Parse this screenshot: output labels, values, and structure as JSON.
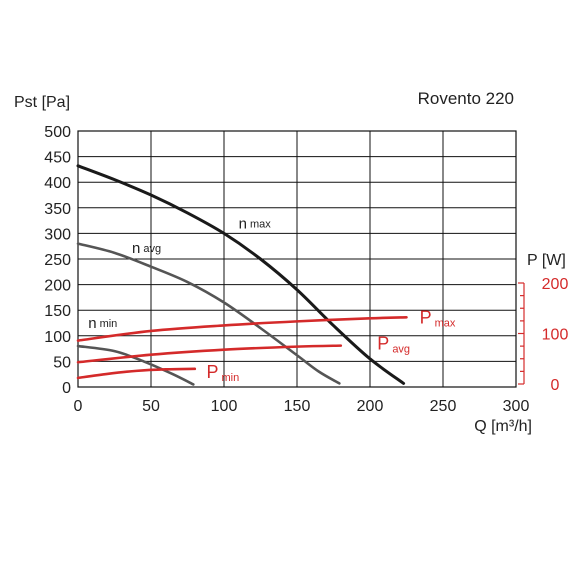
{
  "chart_data": {
    "type": "line",
    "title": "Rovento 220",
    "xlabel": "Q [m³/h]",
    "ylabel": "Pst [Pa]",
    "y2label": "P [W]",
    "xlim": [
      0,
      300
    ],
    "ylim": [
      0,
      500
    ],
    "y2lim": [
      0,
      200
    ],
    "x_ticks": [
      "0",
      "50",
      "100",
      "150",
      "200",
      "250",
      "300"
    ],
    "y_ticks": [
      "0",
      "50",
      "100",
      "150",
      "200",
      "250",
      "300",
      "350",
      "400",
      "450",
      "500"
    ],
    "y2_ticks": [
      "0",
      "100",
      "200"
    ],
    "grid": true,
    "colors": {
      "max": "#1a1a1a",
      "avg": "#555555",
      "min": "#555555",
      "power": "#d42a2a",
      "grid": "#111111"
    },
    "series": [
      {
        "key": "n_max",
        "label_main": "n",
        "label_sub": "max",
        "axis": "left",
        "color_key": "max",
        "label_at": [
          110,
          310
        ],
        "points": [
          [
            0,
            432
          ],
          [
            25,
            405
          ],
          [
            50,
            375
          ],
          [
            75,
            340
          ],
          [
            100,
            300
          ],
          [
            125,
            250
          ],
          [
            150,
            190
          ],
          [
            175,
            120
          ],
          [
            200,
            55
          ],
          [
            223,
            7
          ]
        ]
      },
      {
        "key": "n_avg",
        "label_main": "n",
        "label_sub": "avg",
        "axis": "left",
        "color_key": "avg",
        "label_at": [
          37,
          262
        ],
        "points": [
          [
            0,
            280
          ],
          [
            25,
            262
          ],
          [
            50,
            235
          ],
          [
            75,
            205
          ],
          [
            100,
            165
          ],
          [
            125,
            115
          ],
          [
            150,
            62
          ],
          [
            165,
            30
          ],
          [
            179,
            7
          ]
        ]
      },
      {
        "key": "n_min",
        "label_main": "n",
        "label_sub": "min",
        "axis": "left",
        "color_key": "min",
        "label_at": [
          7,
          115
        ],
        "points": [
          [
            0,
            80
          ],
          [
            25,
            70
          ],
          [
            45,
            50
          ],
          [
            65,
            25
          ],
          [
            79,
            5
          ]
        ]
      },
      {
        "key": "P_max",
        "label_main": "P",
        "label_sub": "max",
        "axis": "right",
        "color_key": "power",
        "label_at": [
          234,
          120
        ],
        "points": [
          [
            0,
            86
          ],
          [
            50,
            105
          ],
          [
            100,
            116
          ],
          [
            150,
            124
          ],
          [
            200,
            130
          ],
          [
            225,
            132
          ]
        ]
      },
      {
        "key": "P_avg",
        "label_main": "P",
        "label_sub": "avg",
        "axis": "right",
        "color_key": "power",
        "label_at": [
          205,
          68
        ],
        "points": [
          [
            0,
            43
          ],
          [
            50,
            58
          ],
          [
            100,
            68
          ],
          [
            150,
            74
          ],
          [
            180,
            76
          ]
        ]
      },
      {
        "key": "P_min",
        "label_main": "P",
        "label_sub": "min",
        "axis": "right",
        "color_key": "power",
        "label_at": [
          88,
          12
        ],
        "points": [
          [
            0,
            12
          ],
          [
            20,
            20
          ],
          [
            40,
            26
          ],
          [
            60,
            29
          ],
          [
            80,
            30
          ]
        ]
      }
    ]
  }
}
